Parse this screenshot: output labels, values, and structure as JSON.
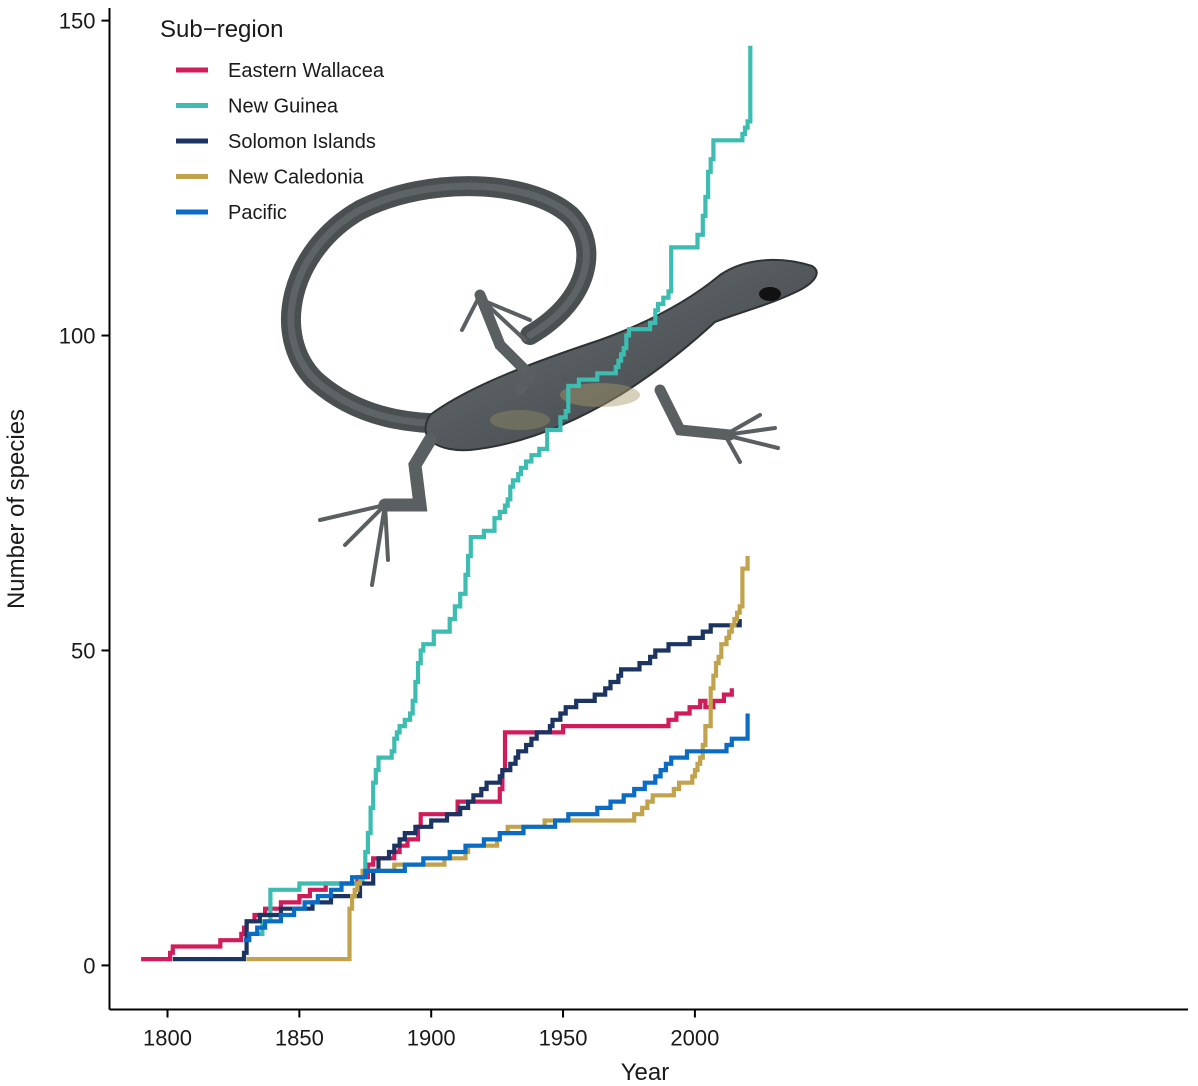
{
  "chart_data": {
    "type": "line",
    "step": true,
    "xlabel": "Year",
    "ylabel": "Number of species",
    "xlim": [
      1778,
      2187
    ],
    "ylim": [
      -7,
      152
    ],
    "xticks": [
      1800,
      1850,
      1900,
      1950,
      2000
    ],
    "yticks": [
      0,
      50,
      100,
      150
    ],
    "grid": false,
    "legend": {
      "title": "Sub−region",
      "position": "top-left"
    },
    "image_overlay": "lizard-photo",
    "series": [
      {
        "name": "Eastern Wallacea",
        "color": "#d01c5b",
        "x": [
          1790,
          1801,
          1802,
          1820,
          1828,
          1829,
          1830,
          1833,
          1837,
          1843,
          1850,
          1854,
          1860,
          1872,
          1876,
          1878,
          1886,
          1888,
          1891,
          1895,
          1896,
          1910,
          1926,
          1927,
          1928,
          1950,
          1990,
          1993,
          1998,
          2002,
          2004,
          2007,
          2011,
          2014
        ],
        "y": [
          1,
          2,
          3,
          4,
          5,
          6,
          7,
          8,
          9,
          10,
          11,
          12,
          13,
          14,
          16,
          17,
          18,
          19,
          20,
          22,
          24,
          26,
          28,
          31,
          37,
          38,
          39,
          40,
          41,
          42,
          41,
          42,
          43,
          44
        ]
      },
      {
        "name": "New Guinea",
        "color": "#3dbcb2",
        "x": [
          1834,
          1836,
          1839,
          1850,
          1874,
          1875,
          1876,
          1877,
          1878,
          1879,
          1880,
          1885,
          1886,
          1887,
          1888,
          1890,
          1892,
          1893,
          1894,
          1895,
          1896,
          1897,
          1901,
          1907,
          1909,
          1911,
          1913,
          1914,
          1915,
          1920,
          1924,
          1926,
          1928,
          1929,
          1930,
          1931,
          1933,
          1934,
          1936,
          1938,
          1941,
          1944,
          1949,
          1951,
          1952,
          1956,
          1963,
          1970,
          1971,
          1972,
          1973,
          1974,
          1975,
          1983,
          1985,
          1986,
          1988,
          1990,
          1991,
          2001,
          2003,
          2004,
          2005,
          2006,
          2007,
          2018,
          2019,
          2020,
          2021
        ],
        "y": [
          5,
          7,
          12,
          13,
          14,
          18,
          21,
          25,
          29,
          31,
          33,
          34,
          36,
          37,
          38,
          39,
          40,
          42,
          45,
          48,
          50,
          51,
          53,
          55,
          57,
          59,
          62,
          65,
          68,
          69,
          71,
          72,
          73,
          74,
          76,
          77,
          78,
          79,
          80,
          81,
          82,
          85,
          87,
          88,
          92,
          93,
          94,
          95,
          96,
          97,
          98,
          100,
          101,
          102,
          104,
          105,
          106,
          107,
          114,
          116,
          119,
          122,
          126,
          128,
          131,
          132,
          133,
          134,
          146
        ]
      },
      {
        "name": "Solomon Islands",
        "color": "#1c3462",
        "x": [
          1802,
          1829,
          1830,
          1835,
          1843,
          1855,
          1862,
          1873,
          1878,
          1880,
          1884,
          1886,
          1888,
          1890,
          1894,
          1900,
          1906,
          1911,
          1914,
          1916,
          1919,
          1921,
          1926,
          1927,
          1930,
          1932,
          1933,
          1936,
          1938,
          1940,
          1945,
          1946,
          1949,
          1951,
          1955,
          1962,
          1966,
          1968,
          1971,
          1972,
          1979,
          1983,
          1985,
          1990,
          1998,
          2003,
          2006,
          2017
        ],
        "y": [
          1,
          2,
          7,
          8,
          9,
          10,
          11,
          13,
          15,
          17,
          18,
          19,
          20,
          21,
          22,
          23,
          24,
          25,
          26,
          27,
          28,
          29,
          30,
          31,
          32,
          33,
          34,
          35,
          36,
          37,
          38,
          39,
          40,
          41,
          42,
          43,
          44,
          45,
          46,
          47,
          48,
          49,
          50,
          51,
          52,
          53,
          54,
          55
        ]
      },
      {
        "name": "New Caledonia",
        "color": "#c2a34d",
        "x": [
          1830,
          1869,
          1870,
          1871,
          1872,
          1873,
          1874,
          1886,
          1905,
          1913,
          1914,
          1925,
          1926,
          1929,
          1943,
          1977,
          1980,
          1982,
          1984,
          1992,
          1994,
          1999,
          2000,
          2001,
          2002,
          2003,
          2004,
          2006,
          2007,
          2008,
          2009,
          2010,
          2012,
          2013,
          2014,
          2015,
          2016,
          2017,
          2018,
          2020
        ],
        "y": [
          1,
          9,
          11,
          12,
          13,
          14,
          15,
          16,
          17,
          18,
          19,
          20,
          21,
          22,
          23,
          24,
          25,
          26,
          27,
          28,
          29,
          30,
          31,
          32,
          33,
          35,
          38,
          44,
          46,
          48,
          49,
          51,
          52,
          53,
          54,
          55,
          56,
          57,
          63,
          65
        ]
      },
      {
        "name": "Pacific",
        "color": "#0b6cc4",
        "x": [
          1829,
          1831,
          1834,
          1837,
          1843,
          1848,
          1852,
          1857,
          1862,
          1866,
          1870,
          1875,
          1890,
          1897,
          1907,
          1913,
          1920,
          1926,
          1935,
          1947,
          1952,
          1963,
          1968,
          1973,
          1977,
          1981,
          1985,
          1987,
          1989,
          1991,
          1997,
          2012,
          2014,
          2020
        ],
        "y": [
          4,
          5,
          6,
          7,
          8,
          9,
          10,
          11,
          12,
          13,
          14,
          15,
          16,
          17,
          18,
          19,
          20,
          21,
          22,
          23,
          24,
          25,
          26,
          27,
          28,
          29,
          30,
          31,
          32,
          33,
          34,
          35,
          36,
          40
        ]
      }
    ]
  }
}
